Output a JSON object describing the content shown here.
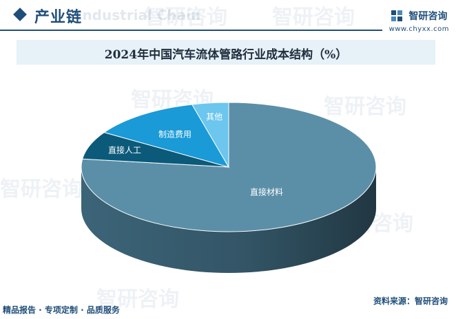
{
  "header": {
    "title": "产业链",
    "watermark_sub": "Industrial Chain"
  },
  "brand": {
    "name": "智研咨询",
    "url": "www.chyxx.com",
    "watermark_text": "智研咨询"
  },
  "footer": {
    "left": "精品报告 · 专项定制 · 品质服务",
    "right": "资料来源：智研咨询"
  },
  "colors": {
    "accent": "#1f4e79",
    "band": "#e6f1f8"
  },
  "chart_data": {
    "type": "pie",
    "title": "2024年中国汽车流体管路行业成本结构（%）",
    "style": "3d",
    "slices": [
      {
        "label": "直接材料",
        "value": 77,
        "top": "#5b8fa8",
        "side": "#3c6478"
      },
      {
        "label": "直接人工",
        "value": 7,
        "top": "#0c5a7a",
        "side": "#063a50"
      },
      {
        "label": "制造费用",
        "value": 12,
        "top": "#1a9ad6",
        "side": "#0d6a98"
      },
      {
        "label": "其他",
        "value": 4,
        "top": "#6cc6ee",
        "side": "#3a96c0"
      }
    ]
  }
}
